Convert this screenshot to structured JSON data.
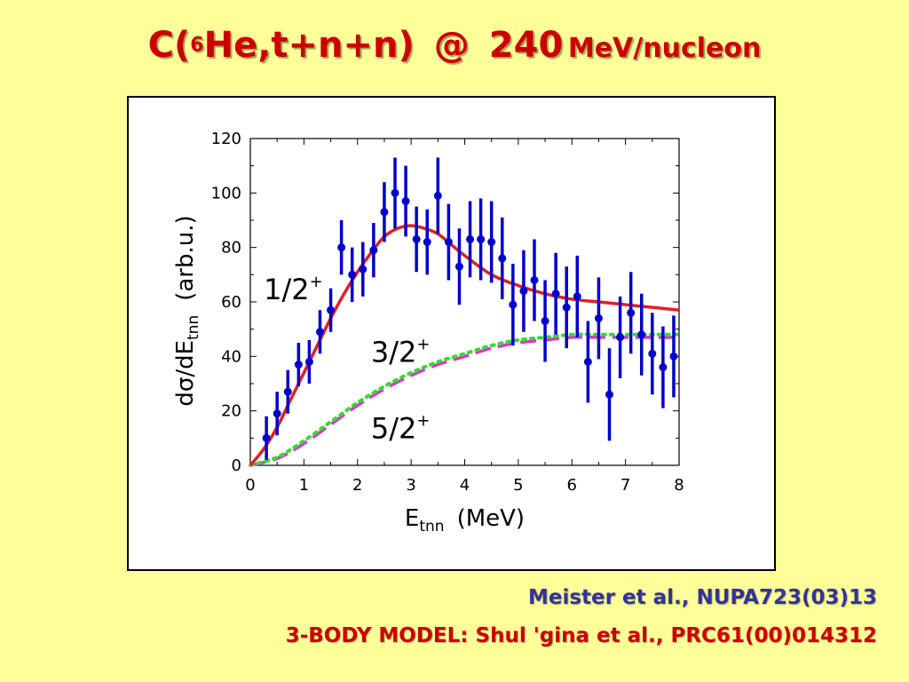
{
  "slide": {
    "title_prefix": "C(",
    "title_sup": "6",
    "title_main": "He,t+n+n)",
    "title_at": "@",
    "title_energy": "240",
    "title_unit": "MeV/nucleon",
    "reference_1": "Meister et al., NUPA723(03)13",
    "reference_2": "3-BODY MODEL: Shul 'gina et al., PRC61(00)014312"
  },
  "colors": {
    "background": "#ffff99",
    "title": "#cc0000",
    "reference_1": "#333399",
    "reference_2": "#cc0000",
    "data_points": "#0000cc",
    "curve_half": "#e02020",
    "curve_three_half": "#33dd33",
    "curve_five_half": "#dd33cc"
  },
  "chart_data": {
    "type": "scatter",
    "xlabel_main": "E",
    "xlabel_sub": "tnn",
    "xlabel_unit": "(MeV)",
    "ylabel_main": "dσ/dE",
    "ylabel_sub": "tnn",
    "ylabel_unit": "(arb.u.)",
    "xlim": [
      0,
      8
    ],
    "ylim": [
      0,
      120
    ],
    "xticks": [
      0,
      1,
      2,
      3,
      4,
      5,
      6,
      7,
      8
    ],
    "yticks": [
      0,
      20,
      40,
      60,
      80,
      100,
      120
    ],
    "grid": false,
    "points": [
      {
        "x": 0.3,
        "y": 10,
        "err": 8
      },
      {
        "x": 0.5,
        "y": 19,
        "err": 8
      },
      {
        "x": 0.7,
        "y": 27,
        "err": 8
      },
      {
        "x": 0.9,
        "y": 37,
        "err": 8
      },
      {
        "x": 1.1,
        "y": 38,
        "err": 8
      },
      {
        "x": 1.3,
        "y": 49,
        "err": 8
      },
      {
        "x": 1.5,
        "y": 57,
        "err": 8
      },
      {
        "x": 1.7,
        "y": 80,
        "err": 10
      },
      {
        "x": 1.9,
        "y": 70,
        "err": 10
      },
      {
        "x": 2.1,
        "y": 72,
        "err": 10
      },
      {
        "x": 2.3,
        "y": 79,
        "err": 10
      },
      {
        "x": 2.5,
        "y": 93,
        "err": 11
      },
      {
        "x": 2.7,
        "y": 100,
        "err": 13
      },
      {
        "x": 2.9,
        "y": 97,
        "err": 13
      },
      {
        "x": 3.1,
        "y": 83,
        "err": 12
      },
      {
        "x": 3.3,
        "y": 82,
        "err": 12
      },
      {
        "x": 3.5,
        "y": 99,
        "err": 14
      },
      {
        "x": 3.7,
        "y": 82,
        "err": 14
      },
      {
        "x": 3.9,
        "y": 73,
        "err": 14
      },
      {
        "x": 4.1,
        "y": 83,
        "err": 14
      },
      {
        "x": 4.3,
        "y": 83,
        "err": 15
      },
      {
        "x": 4.5,
        "y": 82,
        "err": 15
      },
      {
        "x": 4.7,
        "y": 76,
        "err": 15
      },
      {
        "x": 4.9,
        "y": 59,
        "err": 15
      },
      {
        "x": 5.1,
        "y": 64,
        "err": 15
      },
      {
        "x": 5.3,
        "y": 68,
        "err": 15
      },
      {
        "x": 5.5,
        "y": 53,
        "err": 15
      },
      {
        "x": 5.7,
        "y": 63,
        "err": 15
      },
      {
        "x": 5.9,
        "y": 58,
        "err": 15
      },
      {
        "x": 6.1,
        "y": 62,
        "err": 15
      },
      {
        "x": 6.3,
        "y": 38,
        "err": 15
      },
      {
        "x": 6.5,
        "y": 54,
        "err": 15
      },
      {
        "x": 6.7,
        "y": 26,
        "err": 17
      },
      {
        "x": 6.9,
        "y": 47,
        "err": 15
      },
      {
        "x": 7.1,
        "y": 56,
        "err": 15
      },
      {
        "x": 7.3,
        "y": 48,
        "err": 15
      },
      {
        "x": 7.5,
        "y": 41,
        "err": 15
      },
      {
        "x": 7.7,
        "y": 36,
        "err": 15
      },
      {
        "x": 7.9,
        "y": 40,
        "err": 15
      }
    ],
    "curves": [
      {
        "name": "1/2",
        "style": "solid",
        "x": [
          0,
          0.25,
          0.5,
          0.75,
          1.0,
          1.25,
          1.5,
          1.75,
          2.0,
          2.25,
          2.5,
          2.75,
          3.0,
          3.25,
          3.5,
          3.75,
          4.0,
          4.5,
          5.0,
          5.5,
          6.0,
          6.5,
          7.0,
          7.5,
          8.0
        ],
        "y": [
          0,
          6,
          14,
          24,
          34,
          44,
          54,
          63,
          71,
          78,
          84,
          87,
          88,
          87,
          85,
          81,
          77,
          70,
          66,
          63,
          61,
          60,
          59,
          58,
          57
        ]
      },
      {
        "name": "3/2",
        "style": "dotted",
        "x": [
          0,
          0.5,
          1.0,
          1.5,
          2.0,
          2.5,
          3.0,
          3.5,
          4.0,
          4.5,
          5.0,
          5.5,
          6.0,
          6.5,
          7.0,
          7.5,
          8.0
        ],
        "y": [
          0,
          3,
          9,
          16,
          23,
          29,
          34,
          38,
          41,
          44,
          46,
          47,
          48,
          48,
          48,
          48,
          48
        ]
      },
      {
        "name": "5/2",
        "style": "dashed",
        "x": [
          0,
          0.5,
          1.0,
          1.5,
          2.0,
          2.5,
          3.0,
          3.5,
          4.0,
          4.5,
          5.0,
          5.5,
          6.0,
          6.5,
          7.0,
          7.5,
          8.0
        ],
        "y": [
          0,
          2.5,
          8,
          15,
          22,
          28,
          33,
          37,
          40,
          43,
          45,
          46,
          47,
          47,
          47,
          47,
          47
        ]
      }
    ],
    "annotations": [
      {
        "text": "1/2",
        "sup": "+",
        "x": 0.25,
        "y": 61
      },
      {
        "text": "3/2",
        "sup": "+",
        "x": 2.25,
        "y": 38
      },
      {
        "text": "5/2",
        "sup": "+",
        "x": 2.25,
        "y": 10
      }
    ]
  }
}
